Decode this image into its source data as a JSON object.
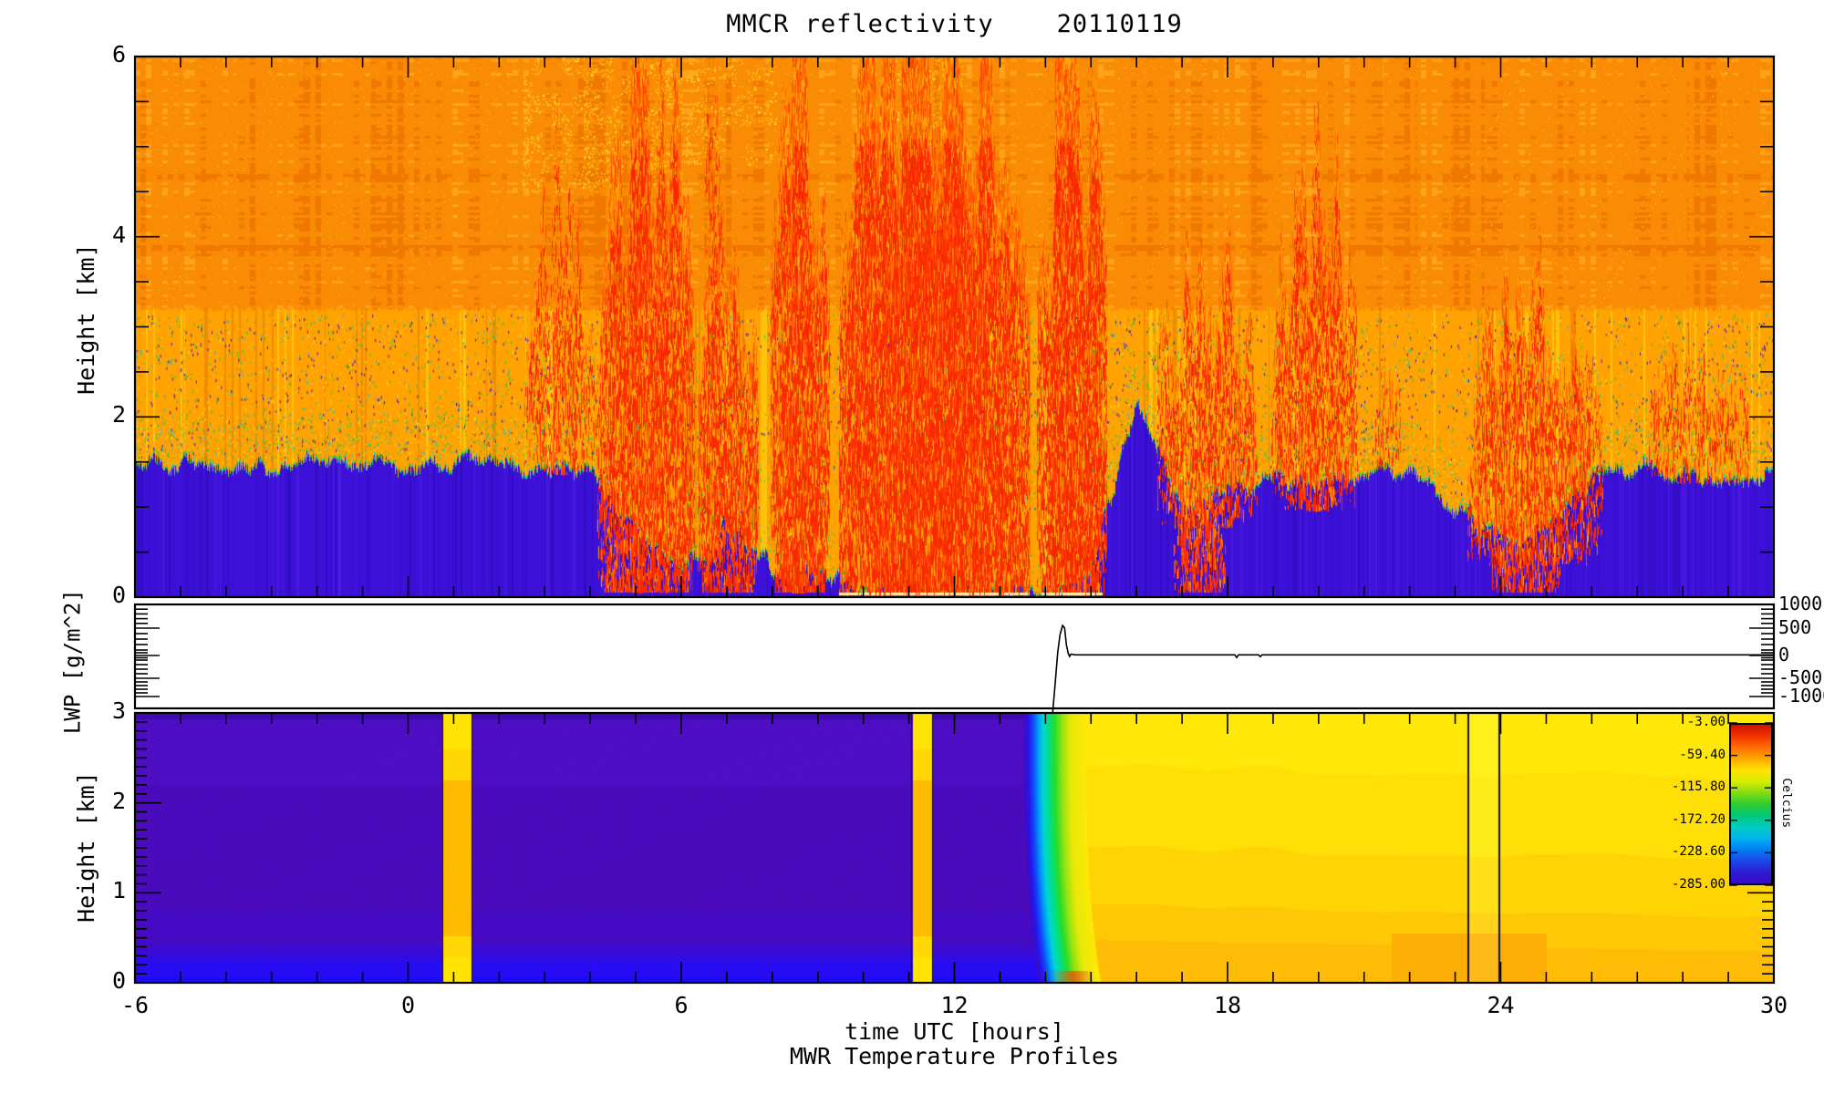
{
  "title": "MMCR reflectivity    20110119",
  "xaxis": {
    "label": "time UTC [hours]",
    "tick_labels": [
      "-6",
      "0",
      "6",
      "12",
      "18",
      "24",
      "30"
    ],
    "tick_hours": [
      -6,
      0,
      6,
      12,
      18,
      24,
      30
    ],
    "minor_step_hours": 1,
    "range_hours": [
      -6,
      30
    ]
  },
  "footer_label": "MWR Temperature Profiles",
  "reflectivity_panel": {
    "ylabel": "Height [km]",
    "ytick_labels": [
      "6",
      "4",
      "2",
      "0"
    ],
    "ytick_km": [
      6,
      4,
      2,
      0
    ],
    "y_minor_step_km": 0.5,
    "ylim_km": [
      0,
      6
    ]
  },
  "lwp_panel": {
    "ylabel": "LWP [g/m^2]",
    "right_tick_labels": [
      "1000",
      "500",
      "0",
      "-500",
      "-1000"
    ],
    "right_tick_values": [
      1000,
      500,
      0,
      -500,
      -1000
    ],
    "minor_tick_values": [
      900,
      800,
      700,
      600,
      400,
      300,
      200,
      100,
      50,
      -50,
      -100,
      -200,
      -300,
      -400,
      -600,
      -700,
      -800,
      -900
    ]
  },
  "temperature_panel": {
    "ylabel": "Height [km]",
    "ytick_labels": [
      "3",
      "2",
      "1",
      "0"
    ],
    "ytick_km": [
      3,
      2,
      1,
      0
    ],
    "y_minor_step_km": 0.1,
    "colorbar": {
      "tick_labels": [
        "-3.00",
        "-59.40",
        "-115.80",
        "-172.20",
        "-228.60",
        "-285.00"
      ],
      "unit_label": "Celcius",
      "gradient_top_to_bottom": [
        "#D21000",
        "#F03400",
        "#FF6C00",
        "#FFA800",
        "#FFE200",
        "#D8EC00",
        "#84DC14",
        "#2ECC2E",
        "#00C878",
        "#00CCC0",
        "#00B4EC",
        "#0080F4",
        "#1C48E8",
        "#2C1CD4",
        "#3A0CC0"
      ]
    }
  },
  "chart_data": [
    {
      "type": "heatmap",
      "name": "mmcr_reflectivity",
      "title": "MMCR reflectivity",
      "date": "20110119",
      "x_range_hours": [
        -6,
        30
      ],
      "y_range_km": [
        0,
        6
      ],
      "palette": {
        "noise_band_base": "#FA8B05",
        "noise_band_dark": "#F07800",
        "noise_band_light": "#FFA31A",
        "clear_air_orange": "#FFA202",
        "clear_air_dark": "#EF8C00",
        "clear_air_light": "#FFC20C",
        "subcloud_blue": "#3C10D6",
        "boundary_green": "#28C828",
        "boundary_cyan": "#00C8C8",
        "echo_core_red": "#F82800",
        "echo_mid": "#FF4500",
        "echo_soft": "#FF6F00",
        "echo_fringe": "#FFA30A",
        "ground_bright": "#FFF0A0",
        "speckle_yellow": "#FFD018"
      },
      "noise_band_bottom_km": 3.2,
      "clear_boundary_km_by_hour": [
        1.45,
        1.5,
        1.42,
        1.47,
        1.5,
        1.43,
        1.47,
        1.52,
        1.46,
        1.42,
        1.44,
        0.7,
        0.3,
        0.8,
        0.3,
        0.3,
        0.05,
        0.05,
        0.05,
        0.05,
        0.05,
        0.35,
        2.15,
        0.9,
        1.25,
        1.3,
        1.25,
        1.35,
        1.45,
        1.0,
        0.6,
        0.7,
        1.3,
        1.45,
        1.35,
        1.3,
        1.4
      ],
      "echo_plumes": [
        {
          "t0": 2.55,
          "t1": 4.15,
          "top_km": 4.0,
          "base_km": 1.35,
          "density": 0.45
        },
        {
          "t0": 3.0,
          "t1": 3.75,
          "top_km": 5.0,
          "base_km": 2.6,
          "density": 0.28
        },
        {
          "t0": 4.15,
          "t1": 6.3,
          "top_km": 5.2,
          "base_km": 0.05,
          "density": 0.8
        },
        {
          "t0": 6.35,
          "t1": 7.7,
          "top_km": 3.5,
          "base_km": 0.05,
          "density": 0.75
        },
        {
          "t0": 6.5,
          "t1": 6.95,
          "top_km": 5.6,
          "base_km": 3.1,
          "density": 0.3
        },
        {
          "t0": 7.95,
          "t1": 9.25,
          "top_km": 5.9,
          "base_km": 0.05,
          "density": 0.85
        },
        {
          "t0": 9.45,
          "t1": 13.65,
          "top_km": 6.0,
          "base_km": 0.0,
          "density": 0.97
        },
        {
          "t0": 13.8,
          "t1": 15.35,
          "top_km": 5.2,
          "base_km": 0.0,
          "density": 0.9
        },
        {
          "t0": 16.45,
          "t1": 18.65,
          "top_km": 3.6,
          "base_km": 0.75,
          "density": 0.55
        },
        {
          "t0": 16.8,
          "t1": 17.95,
          "top_km": 1.1,
          "base_km": 0.05,
          "density": 0.7
        },
        {
          "t0": 18.95,
          "t1": 20.85,
          "top_km": 4.6,
          "base_km": 0.95,
          "density": 0.6
        },
        {
          "t0": 21.1,
          "t1": 21.8,
          "top_km": 2.7,
          "base_km": 1.4,
          "density": 0.35
        },
        {
          "t0": 23.25,
          "t1": 26.25,
          "top_km": 3.2,
          "base_km": 0.35,
          "density": 0.6
        },
        {
          "t0": 23.8,
          "t1": 25.3,
          "top_km": 0.9,
          "base_km": 0.05,
          "density": 0.65
        },
        {
          "t0": 27.1,
          "t1": 29.5,
          "top_km": 2.7,
          "base_km": 1.25,
          "density": 0.42
        }
      ],
      "yellow_speckle_patches": [
        {
          "t0": 2.5,
          "t1": 5.8,
          "k0": 4.5,
          "k1": 6.0,
          "density": 0.6
        },
        {
          "t0": 6.1,
          "t1": 7.9,
          "k0": 4.8,
          "k1": 6.0,
          "density": 0.3
        },
        {
          "t0": 10.6,
          "t1": 12.1,
          "k0": 5.2,
          "k1": 6.0,
          "density": 0.35
        }
      ]
    },
    {
      "type": "line",
      "name": "lwp",
      "units": "g/m^2",
      "axis_tick_values": [
        1000,
        500,
        0,
        -500,
        -1000
      ],
      "points_hour_value": [
        [
          14.16,
          -1425
        ],
        [
          14.21,
          -700
        ],
        [
          14.27,
          60
        ],
        [
          14.32,
          380
        ],
        [
          14.375,
          555
        ],
        [
          14.42,
          505
        ],
        [
          14.46,
          195
        ],
        [
          14.5,
          40
        ],
        [
          14.53,
          -20
        ],
        [
          14.56,
          25
        ],
        [
          14.65,
          12
        ],
        [
          18.16,
          12
        ],
        [
          18.2,
          -45
        ],
        [
          18.24,
          12
        ],
        [
          18.68,
          12
        ],
        [
          18.72,
          -25
        ],
        [
          18.76,
          12
        ],
        [
          30,
          12
        ]
      ]
    },
    {
      "type": "heatmap",
      "name": "mwr_temperature_profiles",
      "x_range_hours": [
        -6,
        30
      ],
      "y_range_km": [
        0,
        3
      ],
      "cold_sector_color": "#4A0BBC",
      "cold_end_hour_top": 13.52,
      "transition_width_hours": 1.36,
      "transition_bend_hours_at_ground": 0.33,
      "warm_stripe_hours": [
        [
          0.77,
          1.39
        ],
        [
          11.07,
          11.51
        ]
      ],
      "thin_vertical_line_hours": [
        23.29,
        23.97
      ],
      "transition_stops": [
        [
          0,
          "#3A0CC2"
        ],
        [
          0.07,
          "#2814EC"
        ],
        [
          0.14,
          "#1046F8"
        ],
        [
          0.22,
          "#0096F8"
        ],
        [
          0.3,
          "#00D4D8"
        ],
        [
          0.4,
          "#00E082"
        ],
        [
          0.5,
          "#28DC28"
        ],
        [
          0.62,
          "#96E414"
        ],
        [
          0.75,
          "#E8E808"
        ],
        [
          1,
          "#FFE805"
        ]
      ],
      "warm_band_colors_top_to_bottom": [
        "#FFE808",
        "#FFDF05",
        "#FFD405",
        "#FFC806",
        "#FFBC06"
      ],
      "warm_band_boundaries_km": [
        2.42,
        1.52,
        0.88,
        0.48
      ],
      "low_level_orange": "#FDAE05",
      "low_level_orange_hours": [
        21.6,
        25.0
      ],
      "ground_hot_spot": {
        "hours": [
          14.15,
          15.05
        ],
        "color": "#EB5808"
      }
    }
  ]
}
